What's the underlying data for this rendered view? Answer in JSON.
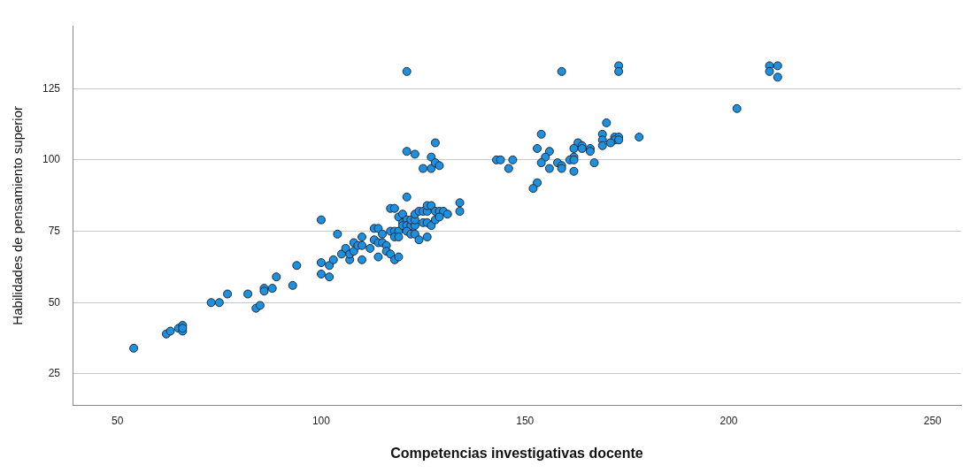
{
  "chart_data": {
    "type": "scatter",
    "xlabel": "Competencias investigativas docente",
    "ylabel": "Habilidades de pensamiento superior",
    "xlim": [
      39,
      257
    ],
    "xticks": [
      50,
      100,
      150,
      200,
      250
    ],
    "ylim": [
      14,
      147
    ],
    "yticks": [
      25,
      50,
      75,
      100,
      125
    ],
    "grid": "y",
    "marker": "circle",
    "series": [
      {
        "color": "#1e90e0",
        "x": [
          54,
          62,
          63,
          65,
          66,
          66,
          66,
          73,
          75,
          77,
          82,
          84,
          85,
          86,
          86,
          88,
          89,
          93,
          94,
          100,
          104,
          100,
          100,
          102,
          102,
          103,
          105,
          106,
          107,
          108,
          107,
          108,
          109,
          110,
          110,
          110,
          112,
          113,
          114,
          113,
          114,
          114,
          115,
          115,
          116,
          116,
          117,
          117,
          118,
          119,
          118,
          119,
          118,
          119,
          117,
          118,
          119,
          120,
          121,
          120,
          121,
          120,
          121,
          122,
          123,
          122,
          123,
          121,
          122,
          123,
          124,
          123,
          124,
          125,
          126,
          126,
          127,
          128,
          129,
          130,
          131,
          125,
          126,
          127,
          128,
          129,
          126,
          134,
          134,
          121,
          123,
          127,
          128,
          125,
          127,
          128,
          129,
          121,
          159,
          173,
          173,
          210,
          212,
          210,
          212,
          202,
          170,
          154,
          169,
          169,
          172,
          173,
          172,
          173,
          171,
          169,
          178,
          153,
          156,
          155,
          163,
          164,
          162,
          164,
          166,
          166,
          162,
          161,
          162,
          167,
          154,
          158,
          159,
          159,
          156,
          162,
          143,
          144,
          147,
          146,
          153,
          152
        ],
        "values": [
          34,
          39,
          40,
          41,
          42,
          40,
          41,
          50,
          50,
          53,
          53,
          48,
          49,
          55,
          54,
          55,
          59,
          56,
          63,
          79,
          74,
          64,
          60,
          59,
          63,
          65,
          67,
          69,
          65,
          71,
          67,
          68,
          70,
          65,
          73,
          70,
          69,
          76,
          76,
          72,
          66,
          71,
          74,
          71,
          70,
          68,
          67,
          75,
          75,
          75,
          65,
          66,
          73,
          73,
          83,
          83,
          80,
          81,
          87,
          78,
          79,
          77,
          77,
          77,
          77,
          79,
          79,
          75,
          74,
          74,
          72,
          81,
          82,
          82,
          82,
          84,
          84,
          82,
          82,
          82,
          81,
          78,
          78,
          77,
          79,
          80,
          73,
          85,
          82,
          103,
          102,
          101,
          106,
          97,
          97,
          99,
          98,
          131,
          131,
          133,
          131,
          133,
          133,
          131,
          129,
          118,
          113,
          109,
          109,
          107,
          108,
          108,
          107,
          107,
          106,
          105,
          108,
          104,
          103,
          101,
          106,
          105,
          104,
          104,
          104,
          103,
          101,
          100,
          100,
          99,
          99,
          99,
          98,
          97,
          97,
          96,
          100,
          100,
          100,
          97,
          92,
          90
        ]
      }
    ]
  }
}
